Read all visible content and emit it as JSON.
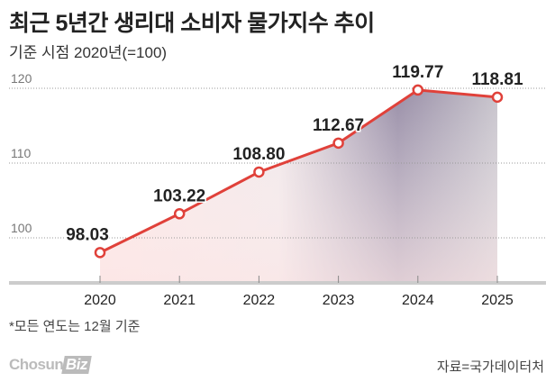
{
  "title": "최근 5년간 생리대 소비자 물가지수 추이",
  "subtitle": "기준 시점 2020년(=100)",
  "note": "*모든 연도는 12월 기준",
  "logo": "ChosunBiz",
  "source": "자료=국가데이터처",
  "chart_data": {
    "type": "line",
    "title": "최근 5년간 생리대 소비자 물가지수 추이",
    "categories": [
      "2020",
      "2021",
      "2022",
      "2023",
      "2024",
      "2025"
    ],
    "values": [
      98.03,
      103.22,
      108.8,
      112.67,
      119.77,
      118.81
    ],
    "labels": [
      "98.03",
      "103.22",
      "108.80",
      "112.67",
      "119.77",
      "118.81"
    ],
    "yticks": [
      "100",
      "110",
      "120"
    ],
    "ylim": [
      94.3,
      121
    ],
    "grid": true,
    "line_color": "#e0413a"
  }
}
